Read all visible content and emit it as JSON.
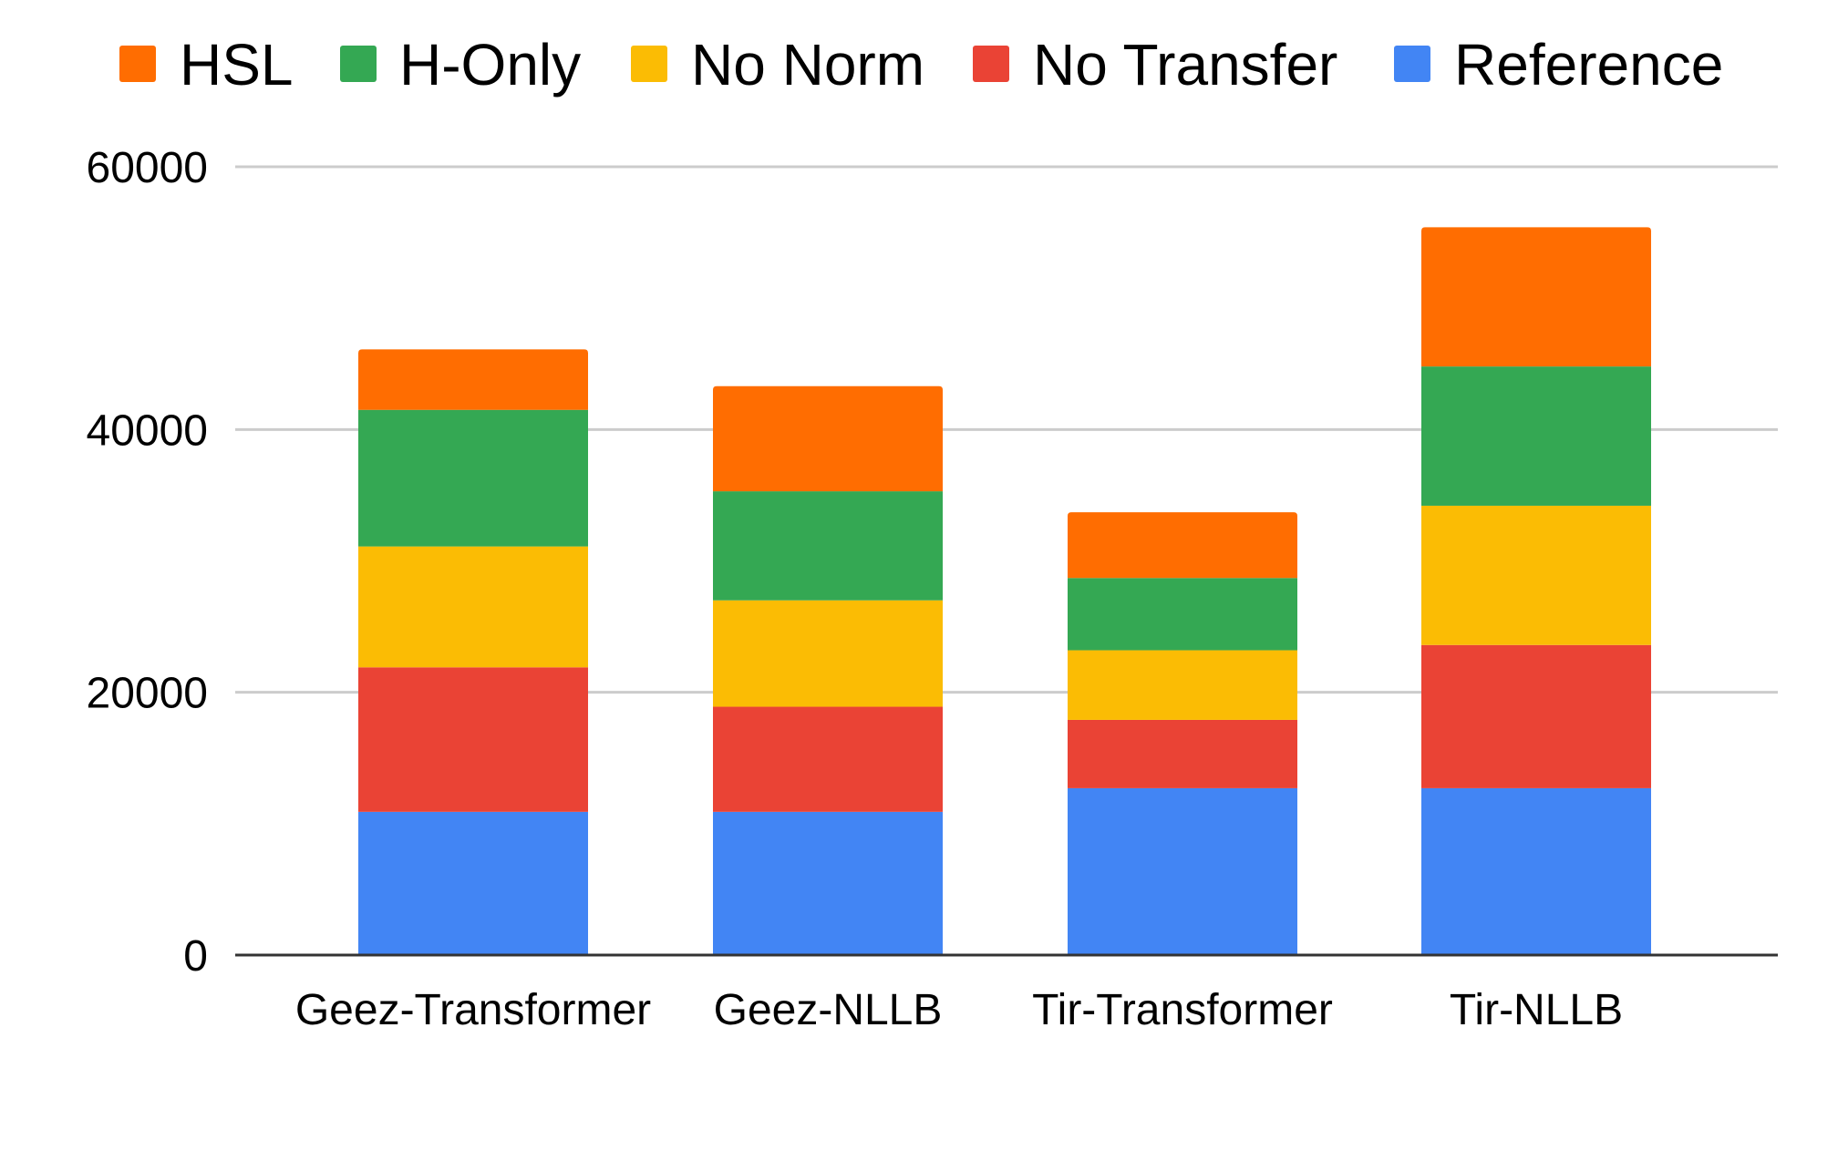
{
  "chart_data": {
    "type": "bar",
    "stacked": true,
    "title": "",
    "xlabel": "",
    "ylabel": "",
    "categories": [
      "Geez-Transformer",
      "Geez-NLLB",
      "Tir-Transformer",
      "Tir-NLLB"
    ],
    "ylim": [
      0,
      60000
    ],
    "yticks": [
      0,
      20000,
      40000,
      60000
    ],
    "ytick_labels": [
      "0",
      "20000",
      "40000",
      "60000"
    ],
    "grid": true,
    "legend_position": "top",
    "legend_order": [
      "HSL",
      "H-Only",
      "No Norm",
      "No Transfer",
      "Reference"
    ],
    "series": [
      {
        "name": "Reference",
        "color": "#4285F4",
        "values": [
          10900,
          10900,
          12700,
          12700
        ]
      },
      {
        "name": "No Transfer",
        "color": "#EA4335",
        "values": [
          11000,
          8000,
          5200,
          10900
        ]
      },
      {
        "name": "No Norm",
        "color": "#FBBC04",
        "values": [
          9200,
          8100,
          5300,
          10600
        ]
      },
      {
        "name": "H-Only",
        "color": "#34A853",
        "values": [
          10400,
          8300,
          5500,
          10600
        ]
      },
      {
        "name": "HSL",
        "color": "#FF6D01",
        "values": [
          4600,
          8000,
          5000,
          10600
        ]
      }
    ]
  }
}
